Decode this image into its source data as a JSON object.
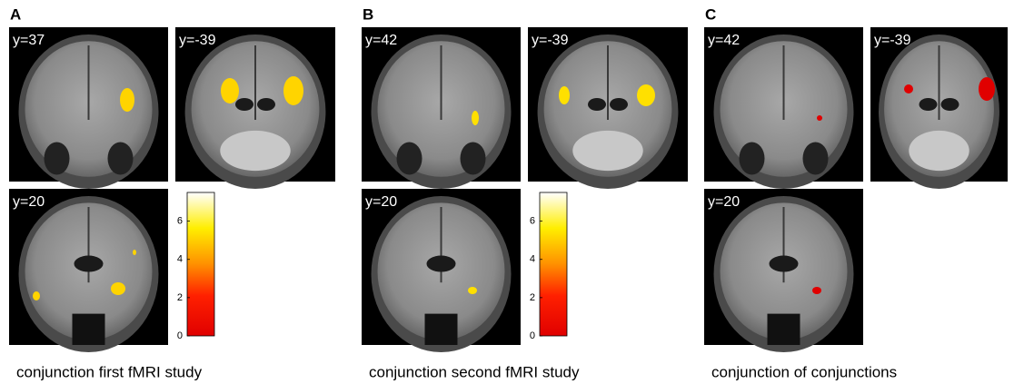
{
  "panels": [
    {
      "label": "A",
      "caption": "conjunction first fMRI study",
      "slices": [
        {
          "label": "y=37"
        },
        {
          "label": "y=-39"
        },
        {
          "label": "y=20"
        }
      ],
      "colorbar": {
        "lim": [
          0,
          7.5
        ],
        "ticks": [
          0,
          2,
          4,
          6
        ]
      }
    },
    {
      "label": "B",
      "caption": "conjunction second fMRI study",
      "slices": [
        {
          "label": "y=42"
        },
        {
          "label": "y=-39"
        },
        {
          "label": "y=20"
        }
      ],
      "colorbar": {
        "lim": [
          0,
          7.5
        ],
        "ticks": [
          0,
          2,
          4,
          6
        ]
      }
    },
    {
      "label": "C",
      "caption": "conjunction of conjunctions",
      "slices": [
        {
          "label": "y=42"
        },
        {
          "label": "y=-39"
        },
        {
          "label": "y=20"
        }
      ]
    }
  ]
}
